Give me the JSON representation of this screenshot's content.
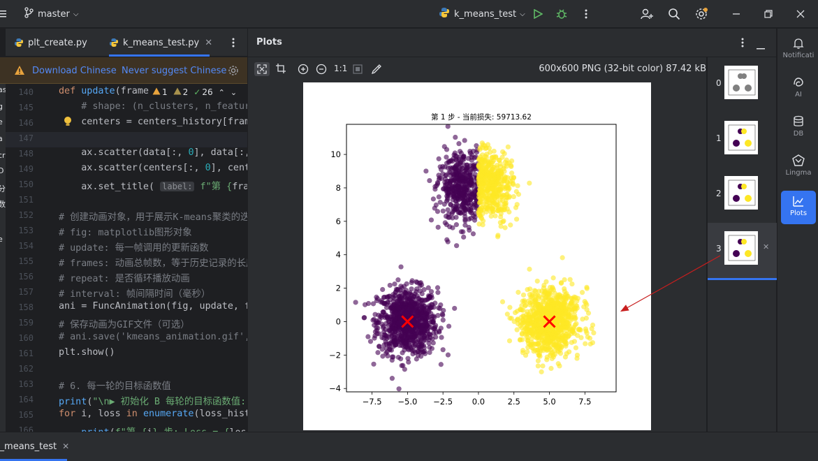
{
  "titlebar": {
    "branch": "master",
    "run_config": "k_means_test"
  },
  "editor_tabs": [
    {
      "label": "plt_create.py"
    },
    {
      "label": "k_means_test.py"
    }
  ],
  "notification": {
    "download_label": "Download Chinese",
    "never_label": "Never suggest Chinese"
  },
  "left_strip_chars": [
    "as",
    "g",
    "e",
    "a",
    "cr",
    "D",
    "分",
    "数",
    "l",
    "e"
  ],
  "inspections": {
    "warnings": "1",
    "weak": "2",
    "ok": "26"
  },
  "code_lines": [
    {
      "num": "140",
      "html": "<span class='kw'>def</span> <span class='fn'>update</span>(frame"
    },
    {
      "num": "145",
      "html": "    <span class='cm'># shape: (n_clusters, n_featur</span>"
    },
    {
      "num": "146",
      "html": "    centers = centers_history[fram"
    },
    {
      "num": "147",
      "html": ""
    },
    {
      "num": "148",
      "html": "    ax.scatter(data[:, <span class='nm'>0</span>], data[:,"
    },
    {
      "num": "149",
      "html": "    ax.scatter(centers[:, <span class='nm'>0</span>], cent"
    },
    {
      "num": "150",
      "html": "    ax.set_title( <span class='hint'>label:</span> <span class='st'>f\"第 {</span>frame"
    },
    {
      "num": "151",
      "html": ""
    },
    {
      "num": "152",
      "html": "<span class='cm'># 创建动画对象，用于展示K-means聚类的迭</span>"
    },
    {
      "num": "153",
      "html": "<span class='cm'># fig: matplotlib图形对象</span>"
    },
    {
      "num": "154",
      "html": "<span class='cm'># update: 每一帧调用的更新函数</span>"
    },
    {
      "num": "155",
      "html": "<span class='cm'># frames: 动画总帧数，等于历史记录的长度</span>"
    },
    {
      "num": "156",
      "html": "<span class='cm'># repeat: 是否循环播放动画</span>"
    },
    {
      "num": "157",
      "html": "<span class='cm'># interval: 帧间隔时间（毫秒）</span>"
    },
    {
      "num": "158",
      "html": "ani = FuncAnimation(fig, update, f"
    },
    {
      "num": "159",
      "html": "<span class='cm'># 保存动画为GIF文件（可选）</span>"
    },
    {
      "num": "160",
      "html": "<span class='cm'># ani.save('kmeans_animation.gif',</span>"
    },
    {
      "num": "161",
      "html": "plt.show()"
    },
    {
      "num": "162",
      "html": ""
    },
    {
      "num": "163",
      "html": "<span class='cm'># 6. 每一轮的目标函数值</span>"
    },
    {
      "num": "164",
      "html": "<span class='fn'>print</span>(<span class='st'>\"\\n▶ 初始化 B 每轮的目标函数值:\"</span>"
    },
    {
      "num": "165",
      "html": "<span class='kw'>for</span> i, loss <span class='kw'>in</span> <span class='fn'>enumerate</span>(loss_hist"
    },
    {
      "num": "166",
      "html": "    <span class='fn'>print</span>(<span class='st'>f\"第 {</span>i<span class='st'>} 步: Loss = {</span>loss"
    }
  ],
  "plots": {
    "title": "Plots",
    "image_info": "600x600 PNG (32-bit color) 87.42 kB",
    "zoom_label": "1:1",
    "thumbnails": [
      "0",
      "1",
      "2",
      "3"
    ]
  },
  "right_strip": [
    {
      "label": "Notificati",
      "icon": "bell-icon"
    },
    {
      "label": "AI",
      "icon": "ai-icon"
    },
    {
      "label": "DB",
      "icon": "database-icon"
    },
    {
      "label": "Lingma",
      "icon": "lingma-icon"
    },
    {
      "label": "Plots",
      "icon": "plots-icon"
    }
  ],
  "bottom": {
    "run_tab": "k_means_test"
  },
  "chart_data": {
    "type": "scatter",
    "title": "第 1 步 - 当前损失: 59713.62",
    "xlabel": "",
    "ylabel": "",
    "xlim": [
      -9.3,
      9.7
    ],
    "ylim": [
      -4.2,
      11.8
    ],
    "xticks": [
      "-7.5",
      "-5.0",
      "-2.5",
      "0.0",
      "2.5",
      "5.0",
      "7.5"
    ],
    "xtick_values": [
      -7.5,
      -5.0,
      -2.5,
      0.0,
      2.5,
      5.0,
      7.5
    ],
    "yticks": [
      "-4",
      "-2",
      "0",
      "2",
      "4",
      "6",
      "8",
      "10"
    ],
    "ytick_values": [
      -4,
      -2,
      0,
      2,
      4,
      6,
      8,
      10
    ],
    "grid": false,
    "series": [
      {
        "color": "#440154",
        "clusters": [
          {
            "center": [
              -5.0,
              0.0
            ],
            "spread": [
              1.05,
              1.0
            ],
            "count": 900
          },
          {
            "center": [
              -1.2,
              8.0
            ],
            "spread": [
              0.75,
              1.1
            ],
            "count": 450,
            "xmax": 0.0
          }
        ]
      },
      {
        "color": "#fde725",
        "clusters": [
          {
            "center": [
              5.0,
              0.0
            ],
            "spread": [
              1.05,
              1.0
            ],
            "count": 900
          },
          {
            "center": [
              0.9,
              8.2
            ],
            "spread": [
              0.75,
              1.0
            ],
            "count": 450,
            "xmin": 0.0
          }
        ]
      }
    ],
    "centers": [
      {
        "x": -5.0,
        "y": 0.0,
        "color": "#ff0000"
      },
      {
        "x": 5.0,
        "y": 0.0,
        "color": "#ff0000"
      }
    ]
  }
}
